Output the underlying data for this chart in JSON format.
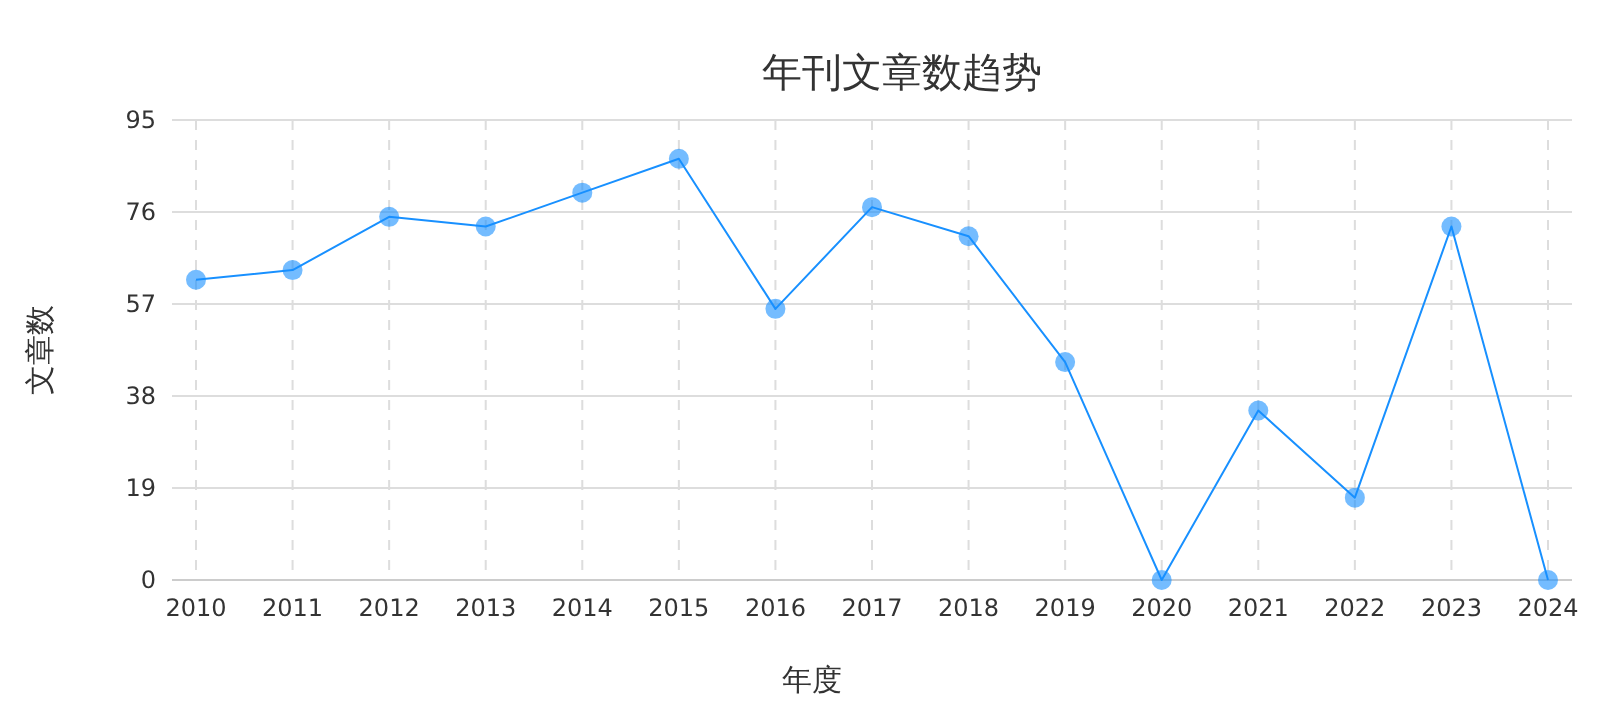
{
  "chart_data": {
    "type": "line",
    "title": "年刊文章数趋势",
    "xlabel": "年度",
    "ylabel": "文章数",
    "categories": [
      "2010",
      "2011",
      "2012",
      "2013",
      "2014",
      "2015",
      "2016",
      "2017",
      "2018",
      "2019",
      "2020",
      "2021",
      "2022",
      "2023",
      "2024"
    ],
    "series": [
      {
        "color": "#1890ff",
        "values": [
          62,
          64,
          75,
          73,
          80,
          87,
          56,
          77,
          71,
          45,
          0,
          35,
          17,
          73,
          0
        ]
      }
    ],
    "ylim": [
      0,
      95
    ],
    "yticks": [
      0,
      19,
      38,
      57,
      76,
      95
    ],
    "grid": true,
    "marker": "circle",
    "line_style": "solid"
  }
}
